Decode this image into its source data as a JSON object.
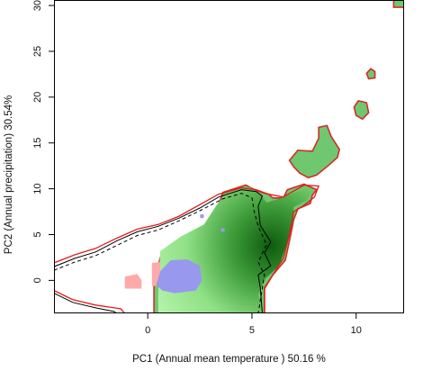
{
  "chart_data": {
    "type": "heatmap",
    "title": "",
    "xlabel": "PC1 (Annual mean temperature ) 50.16 %",
    "ylabel": "PC2 (Annual precipitation) 30.54%",
    "xlim": [
      -4.5,
      12.3
    ],
    "ylim": [
      -3.6,
      30.6
    ],
    "xticks": [
      0,
      5,
      10
    ],
    "yticks": [
      0,
      5,
      10,
      15,
      20,
      25,
      30
    ],
    "grid": false,
    "legend": "none",
    "layers": {
      "density_gradient": {
        "color_low": "#b9f5b0",
        "color_high": "#0d5b0d",
        "peak": [
          5.9,
          3.8
        ],
        "region": [
          [
            0.5,
            -1.2
          ],
          [
            0.6,
            3.2
          ],
          [
            1.6,
            4.8
          ],
          [
            2.7,
            6.1
          ],
          [
            3.3,
            8.2
          ],
          [
            3.7,
            9.4
          ],
          [
            4.9,
            10.2
          ],
          [
            5.4,
            9.4
          ],
          [
            5.7,
            8.5
          ],
          [
            6.3,
            8.9
          ],
          [
            7.6,
            10.1
          ],
          [
            7.9,
            9.6
          ],
          [
            7.6,
            8.7
          ],
          [
            7.0,
            8.0
          ],
          [
            7.0,
            6.6
          ],
          [
            6.7,
            4.1
          ],
          [
            6.3,
            1.6
          ],
          [
            5.6,
            0.1
          ],
          [
            5.3,
            -1.6
          ],
          [
            5.6,
            -3.6
          ],
          [
            0.5,
            -3.6
          ]
        ]
      },
      "occupied_areas": [
        {
          "name": "main",
          "fill": "#6fc86f",
          "outline": "#d52a2a",
          "polygon": [
            [
              0.3,
              -3.6
            ],
            [
              0.3,
              -0.5
            ],
            [
              0.6,
              2.5
            ],
            [
              1.6,
              4.3
            ],
            [
              2.9,
              5.2
            ],
            [
              3.3,
              7.6
            ],
            [
              3.6,
              9.6
            ],
            [
              4.7,
              10.4
            ],
            [
              5.2,
              9.8
            ],
            [
              5.8,
              9.4
            ],
            [
              6.0,
              9.0
            ],
            [
              6.5,
              9.0
            ],
            [
              6.7,
              9.9
            ],
            [
              7.5,
              10.5
            ],
            [
              8.1,
              9.9
            ],
            [
              7.9,
              9.3
            ],
            [
              7.8,
              8.4
            ],
            [
              7.2,
              7.8
            ],
            [
              7.0,
              6.6
            ],
            [
              6.8,
              4.3
            ],
            [
              6.6,
              2.2
            ],
            [
              6.0,
              0.6
            ],
            [
              5.6,
              -0.9
            ],
            [
              5.6,
              -3.6
            ]
          ]
        },
        {
          "name": "north-band",
          "fill": "#6fc86f",
          "outline": "#d52a2a",
          "polygon": [
            [
              6.8,
              13.1
            ],
            [
              7.2,
              14.2
            ],
            [
              7.9,
              14.1
            ],
            [
              8.2,
              15.5
            ],
            [
              8.2,
              16.7
            ],
            [
              8.6,
              16.9
            ],
            [
              8.8,
              15.7
            ],
            [
              9.2,
              14.3
            ],
            [
              9.1,
              13.4
            ],
            [
              8.7,
              12.6
            ],
            [
              8.1,
              11.5
            ],
            [
              7.7,
              11.2
            ],
            [
              7.3,
              11.7
            ],
            [
              7.0,
              12.4
            ]
          ]
        },
        {
          "name": "islet-1",
          "fill": "#6fc86f",
          "outline": "#d52a2a",
          "polygon": [
            [
              9.9,
              18.9
            ],
            [
              10.1,
              19.6
            ],
            [
              10.5,
              19.4
            ],
            [
              10.6,
              18.3
            ],
            [
              10.3,
              17.6
            ],
            [
              10.0,
              18.0
            ]
          ]
        },
        {
          "name": "islet-2",
          "fill": "#6fc86f",
          "outline": "#d52a2a",
          "polygon": [
            [
              10.5,
              22.6
            ],
            [
              10.7,
              23.1
            ],
            [
              10.9,
              22.8
            ],
            [
              10.9,
              22.1
            ],
            [
              10.6,
              22.0
            ]
          ]
        },
        {
          "name": "corner",
          "fill": "#6fc86f",
          "outline": "#d52a2a",
          "polygon": [
            [
              11.8,
              30.6
            ],
            [
              11.8,
              29.8
            ],
            [
              12.3,
              29.8
            ],
            [
              12.3,
              30.6
            ]
          ]
        }
      ],
      "overlap_blue": {
        "fill": "#9898ee",
        "polygon": [
          [
            0.4,
            -0.5
          ],
          [
            0.6,
            1.0
          ],
          [
            1.1,
            2.2
          ],
          [
            1.9,
            2.3
          ],
          [
            2.5,
            1.6
          ],
          [
            2.6,
            0.0
          ],
          [
            2.3,
            -1.1
          ],
          [
            1.3,
            -1.4
          ],
          [
            0.7,
            -1.1
          ]
        ],
        "points": [
          [
            2.6,
            7.0
          ],
          [
            3.6,
            5.5
          ]
        ]
      },
      "pink_patches": {
        "fill": "#ffaaaa",
        "polygons": [
          [
            [
              -1.1,
              -0.9
            ],
            [
              -1.1,
              0.4
            ],
            [
              -0.5,
              0.7
            ],
            [
              -0.3,
              0.0
            ],
            [
              -0.3,
              -0.9
            ]
          ],
          [
            [
              0.2,
              -0.6
            ],
            [
              0.2,
              1.9
            ],
            [
              0.6,
              2.0
            ],
            [
              0.6,
              -0.6
            ]
          ]
        ]
      },
      "contours": {
        "red": {
          "color": "#e41a1c",
          "points": [
            [
              -4.5,
              1.9
            ],
            [
              -3.5,
              2.8
            ],
            [
              -2.5,
              3.5
            ],
            [
              -1.5,
              4.6
            ],
            [
              -0.5,
              5.6
            ],
            [
              0.5,
              6.1
            ],
            [
              1.5,
              7.0
            ],
            [
              2.6,
              8.4
            ],
            [
              3.4,
              9.4
            ],
            [
              4.5,
              10.1
            ],
            [
              5.2,
              9.9
            ],
            [
              5.8,
              9.4
            ],
            [
              6.5,
              9.1
            ],
            [
              7.5,
              10.4
            ],
            [
              8.2,
              10.3
            ],
            [
              8.0,
              9.1
            ],
            [
              7.5,
              8.2
            ],
            [
              7.0,
              7.5
            ],
            [
              6.8,
              5.0
            ],
            [
              6.5,
              2.4
            ],
            [
              6.0,
              0.6
            ],
            [
              5.6,
              -0.8
            ],
            [
              5.6,
              -3.6
            ]
          ]
        },
        "black_solid": {
          "color": "#000000",
          "points": [
            [
              -4.5,
              1.5
            ],
            [
              -3.5,
              2.4
            ],
            [
              -2.5,
              3.1
            ],
            [
              -1.5,
              4.3
            ],
            [
              -0.5,
              5.3
            ],
            [
              0.5,
              5.9
            ],
            [
              1.5,
              6.8
            ],
            [
              2.5,
              7.9
            ],
            [
              3.4,
              9.1
            ],
            [
              4.5,
              9.9
            ],
            [
              5.2,
              9.7
            ],
            [
              5.5,
              9.2
            ],
            [
              5.3,
              8.1
            ],
            [
              5.4,
              6.0
            ],
            [
              5.9,
              4.2
            ],
            [
              5.6,
              3.0
            ],
            [
              5.9,
              1.6
            ],
            [
              5.3,
              0.6
            ],
            [
              5.4,
              -0.8
            ],
            [
              5.5,
              -3.6
            ]
          ]
        },
        "black_dashed": {
          "color": "#000000",
          "points": [
            [
              -4.5,
              1.1
            ],
            [
              -3.5,
              2.0
            ],
            [
              -2.5,
              2.7
            ],
            [
              -1.5,
              3.8
            ],
            [
              -0.5,
              4.9
            ],
            [
              0.5,
              5.5
            ],
            [
              1.5,
              6.5
            ],
            [
              2.5,
              7.6
            ],
            [
              3.6,
              8.9
            ],
            [
              4.5,
              9.5
            ],
            [
              5.0,
              9.0
            ],
            [
              5.1,
              7.6
            ],
            [
              5.3,
              5.9
            ],
            [
              5.7,
              3.9
            ],
            [
              5.3,
              2.0
            ],
            [
              5.6,
              0.6
            ],
            [
              5.3,
              -3.6
            ]
          ]
        },
        "bottom_red": {
          "color": "#e41a1c",
          "points": [
            [
              -4.5,
              -1.1
            ],
            [
              -3.6,
              -2.1
            ],
            [
              -2.5,
              -2.7
            ],
            [
              -1.3,
              -3.1
            ],
            [
              -1.1,
              -3.6
            ]
          ]
        },
        "bottom_black": {
          "color": "#000000",
          "points": [
            [
              -4.5,
              -1.4
            ],
            [
              -3.6,
              -2.4
            ],
            [
              -2.5,
              -3.0
            ],
            [
              -1.6,
              -3.4
            ],
            [
              -1.5,
              -3.6
            ]
          ]
        }
      }
    }
  }
}
